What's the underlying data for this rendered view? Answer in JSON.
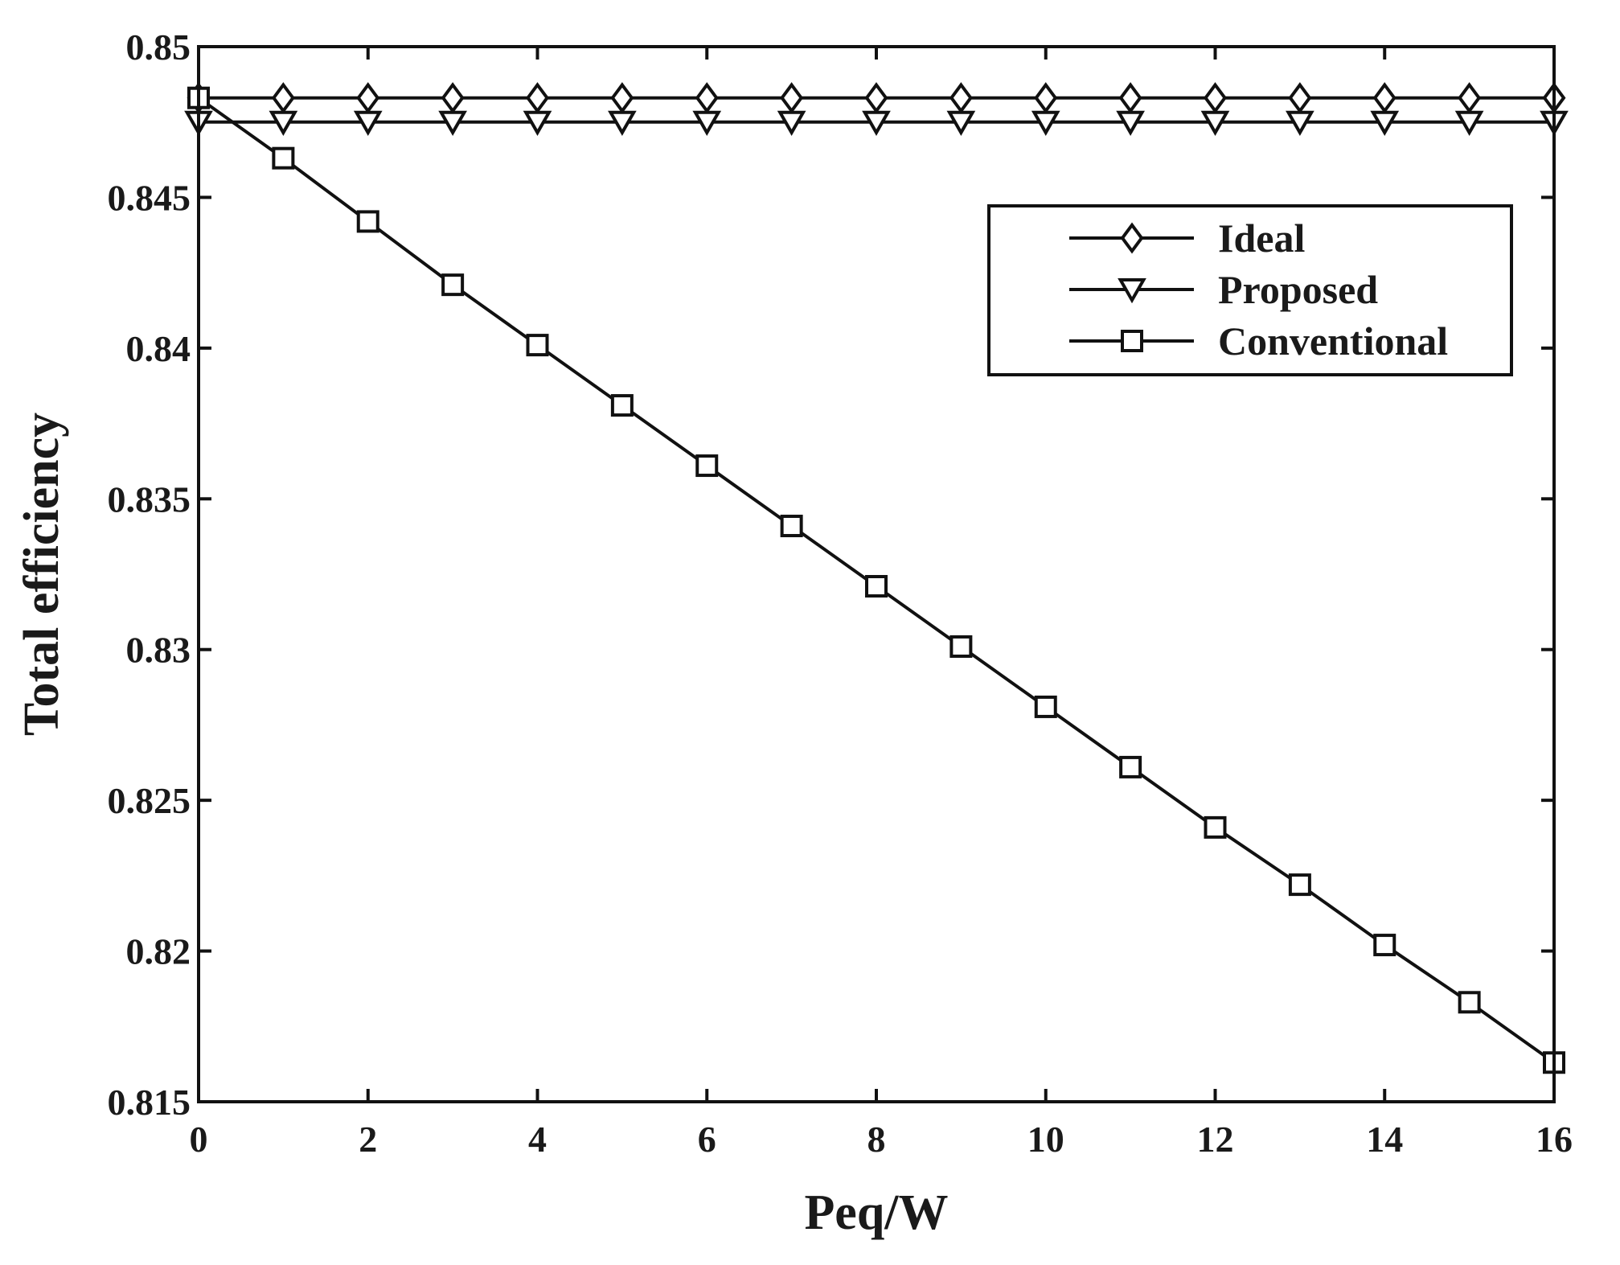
{
  "chart_data": {
    "type": "line",
    "xlabel": "Peq/W",
    "ylabel": "Total efficiency",
    "xlim": [
      0,
      16
    ],
    "ylim": [
      0.815,
      0.85
    ],
    "x_ticks": [
      0,
      2,
      4,
      6,
      8,
      10,
      12,
      14,
      16
    ],
    "x_tick_labels": [
      "0",
      "2",
      "4",
      "6",
      "8",
      "10",
      "12",
      "14",
      "16"
    ],
    "y_ticks": [
      0.815,
      0.82,
      0.825,
      0.83,
      0.835,
      0.84,
      0.845,
      0.85
    ],
    "y_tick_labels": [
      "0.815",
      "0.82",
      "0.825",
      "0.83",
      "0.835",
      "0.84",
      "0.845",
      "0.85"
    ],
    "grid": false,
    "legend_position": "top-right",
    "x": [
      0,
      1,
      2,
      3,
      4,
      5,
      6,
      7,
      8,
      9,
      10,
      11,
      12,
      13,
      14,
      15,
      16
    ],
    "series": [
      {
        "name": "Ideal",
        "marker": "diamond",
        "color": "#111111",
        "values": [
          0.8483,
          0.8483,
          0.8483,
          0.8483,
          0.8483,
          0.8483,
          0.8483,
          0.8483,
          0.8483,
          0.8483,
          0.8483,
          0.8483,
          0.8483,
          0.8483,
          0.8483,
          0.8483,
          0.8483
        ]
      },
      {
        "name": "Proposed",
        "marker": "triangle-down",
        "color": "#111111",
        "values": [
          0.8475,
          0.8475,
          0.8475,
          0.8475,
          0.8475,
          0.8475,
          0.8475,
          0.8475,
          0.8475,
          0.8475,
          0.8475,
          0.8475,
          0.8475,
          0.8475,
          0.8475,
          0.8475,
          0.8475
        ]
      },
      {
        "name": "Conventional",
        "marker": "square",
        "color": "#111111",
        "values": [
          0.8483,
          0.8463,
          0.8442,
          0.8421,
          0.8401,
          0.8381,
          0.8361,
          0.8341,
          0.8321,
          0.8301,
          0.8281,
          0.8261,
          0.8241,
          0.8222,
          0.8202,
          0.8183,
          0.8163
        ]
      }
    ]
  }
}
